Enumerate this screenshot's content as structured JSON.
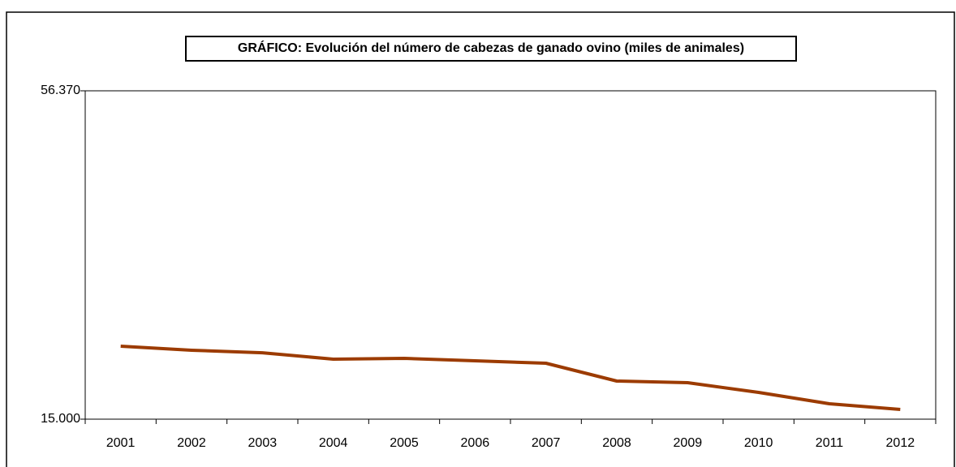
{
  "chart_data": {
    "type": "line",
    "title": "GRÁFICO: Evolución del número de cabezas de ganado ovino (miles de animales)",
    "categories": [
      "2001",
      "2002",
      "2003",
      "2004",
      "2005",
      "2006",
      "2007",
      "2008",
      "2009",
      "2010",
      "2011",
      "2012"
    ],
    "series": [
      {
        "name": "Ganado ovino",
        "color": "#9c3b00",
        "values": [
          24190,
          23680,
          23370,
          22560,
          22660,
          22350,
          22050,
          19800,
          19600,
          18370,
          16940,
          16230
        ]
      }
    ],
    "ylim": [
      15000,
      56370
    ],
    "yticks": [
      {
        "value": 15000,
        "label": "15.000"
      },
      {
        "value": 56370,
        "label": "56.370"
      }
    ],
    "grid": false
  }
}
